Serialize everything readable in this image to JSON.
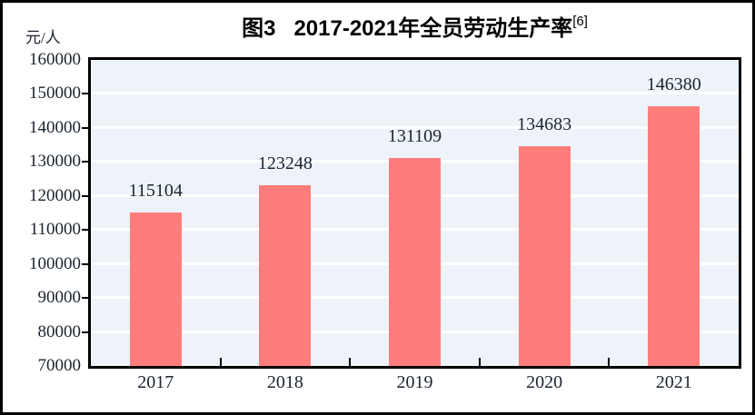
{
  "title": {
    "prefix": "图3",
    "main": "2017-2021年全员劳动生产率",
    "superscript": "[6]"
  },
  "y_axis": {
    "unit_label": "元/人"
  },
  "colors": {
    "bar": "#fd7d7d",
    "plot_background": "#edf3f8",
    "gridline": "#ffffff",
    "axis": "#000000",
    "text": "#1b2430",
    "frame": "#000000"
  },
  "chart_data": {
    "type": "bar",
    "title": "图3 2017-2021年全员劳动生产率[6]",
    "categories": [
      "2017",
      "2018",
      "2019",
      "2020",
      "2021"
    ],
    "values": [
      115104,
      123248,
      131109,
      134683,
      146380
    ],
    "value_labels": [
      "115104",
      "123248",
      "131109",
      "134683",
      "146380"
    ],
    "xlabel": "",
    "ylabel": "元/人",
    "ylim": [
      70000,
      160000
    ],
    "ytick_step": 10000,
    "ytick_labels": [
      "70000",
      "80000",
      "90000",
      "100000",
      "110000",
      "120000",
      "130000",
      "140000",
      "150000",
      "160000"
    ],
    "grid": "horizontal",
    "legend": "none"
  }
}
